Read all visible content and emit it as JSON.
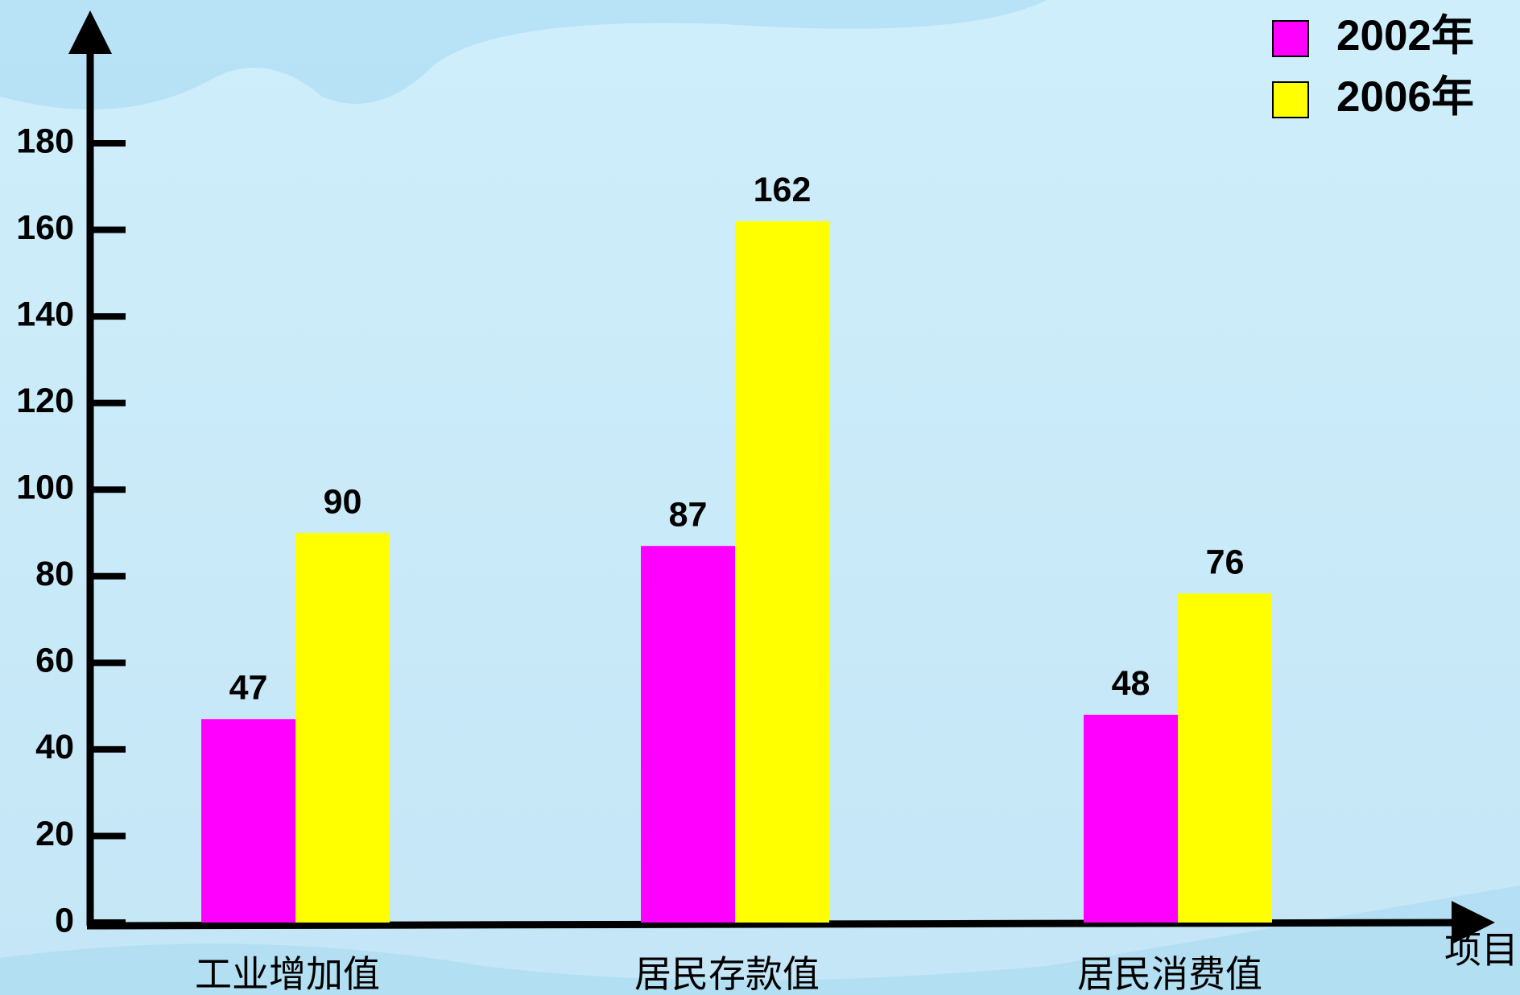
{
  "chart_data": {
    "type": "bar",
    "categories": [
      "工业增加值",
      "居民存款值",
      "居民消费值"
    ],
    "series": [
      {
        "name": "2002年",
        "color": "#ff00ff",
        "values": [
          47,
          87,
          48
        ]
      },
      {
        "name": "2006年",
        "color": "#ffff00",
        "values": [
          90,
          162,
          76
        ]
      }
    ],
    "x_label": "项目",
    "ylim": [
      0,
      180
    ],
    "yticks": [
      0,
      20,
      40,
      60,
      80,
      100,
      120,
      140,
      160,
      180
    ],
    "legend": "upper right"
  }
}
